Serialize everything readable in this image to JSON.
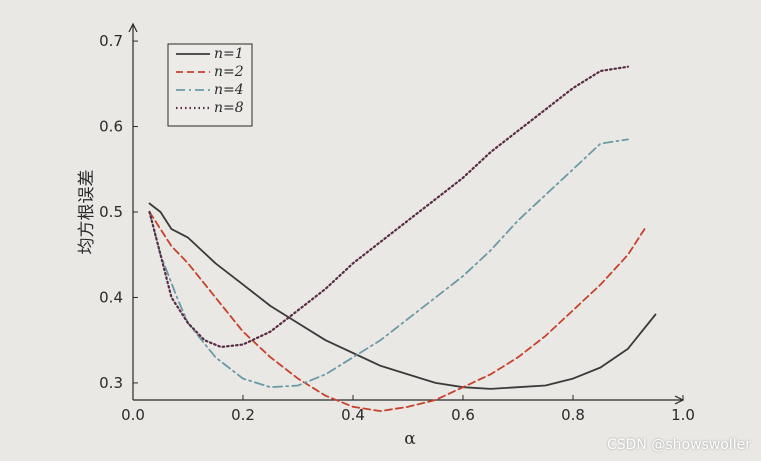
{
  "chart_data": {
    "type": "line",
    "title": "",
    "xlabel": "α",
    "ylabel": "均方根误差",
    "xlim": [
      0.0,
      1.0
    ],
    "ylim": [
      0.28,
      0.72
    ],
    "x_ticks": [
      "0.0",
      "0.2",
      "0.4",
      "0.6",
      "0.8",
      "1.0"
    ],
    "y_ticks": [
      "0.3",
      "0.4",
      "0.5",
      "0.6",
      "0.7"
    ],
    "x_tick_values": [
      0.0,
      0.2,
      0.4,
      0.6,
      0.8,
      1.0
    ],
    "y_tick_values": [
      0.3,
      0.4,
      0.5,
      0.6,
      0.7
    ],
    "grid": false,
    "legend_position": "top-left",
    "series": [
      {
        "name": "n=1",
        "color": "#3a3a3a",
        "style": "solid",
        "x": [
          0.03,
          0.05,
          0.07,
          0.1,
          0.15,
          0.2,
          0.25,
          0.3,
          0.35,
          0.4,
          0.45,
          0.5,
          0.55,
          0.6,
          0.65,
          0.7,
          0.75,
          0.8,
          0.85,
          0.9,
          0.95
        ],
        "y": [
          0.51,
          0.5,
          0.48,
          0.47,
          0.44,
          0.415,
          0.39,
          0.37,
          0.35,
          0.335,
          0.32,
          0.31,
          0.3,
          0.295,
          0.293,
          0.295,
          0.297,
          0.305,
          0.318,
          0.34,
          0.38
        ]
      },
      {
        "name": "n=2",
        "color": "#c8412c",
        "style": "dashed",
        "x": [
          0.03,
          0.05,
          0.07,
          0.1,
          0.15,
          0.2,
          0.25,
          0.3,
          0.35,
          0.4,
          0.45,
          0.5,
          0.55,
          0.6,
          0.65,
          0.7,
          0.75,
          0.8,
          0.85,
          0.9,
          0.93
        ],
        "y": [
          0.5,
          0.48,
          0.46,
          0.44,
          0.4,
          0.36,
          0.33,
          0.305,
          0.285,
          0.272,
          0.267,
          0.272,
          0.28,
          0.295,
          0.31,
          0.33,
          0.355,
          0.385,
          0.415,
          0.45,
          0.48
        ]
      },
      {
        "name": "n=4",
        "color": "#6a9aa6",
        "style": "dashdot",
        "x": [
          0.03,
          0.05,
          0.08,
          0.1,
          0.15,
          0.2,
          0.25,
          0.3,
          0.35,
          0.4,
          0.45,
          0.5,
          0.55,
          0.6,
          0.65,
          0.7,
          0.75,
          0.8,
          0.85,
          0.9
        ],
        "y": [
          0.5,
          0.45,
          0.4,
          0.37,
          0.33,
          0.305,
          0.295,
          0.297,
          0.31,
          0.33,
          0.35,
          0.375,
          0.4,
          0.425,
          0.455,
          0.49,
          0.52,
          0.55,
          0.58,
          0.585
        ]
      },
      {
        "name": "n=8",
        "color": "#5a2c44",
        "style": "dotted",
        "x": [
          0.03,
          0.05,
          0.07,
          0.1,
          0.13,
          0.16,
          0.2,
          0.25,
          0.3,
          0.35,
          0.4,
          0.45,
          0.5,
          0.55,
          0.6,
          0.65,
          0.7,
          0.75,
          0.8,
          0.85,
          0.9
        ],
        "y": [
          0.5,
          0.45,
          0.4,
          0.37,
          0.35,
          0.342,
          0.345,
          0.36,
          0.385,
          0.41,
          0.44,
          0.465,
          0.49,
          0.515,
          0.54,
          0.57,
          0.595,
          0.62,
          0.645,
          0.665,
          0.67
        ]
      }
    ]
  },
  "watermark": "CSDN @showswoller",
  "colors": {
    "background": "#e9e8e4",
    "axis": "#2a2a2a"
  }
}
